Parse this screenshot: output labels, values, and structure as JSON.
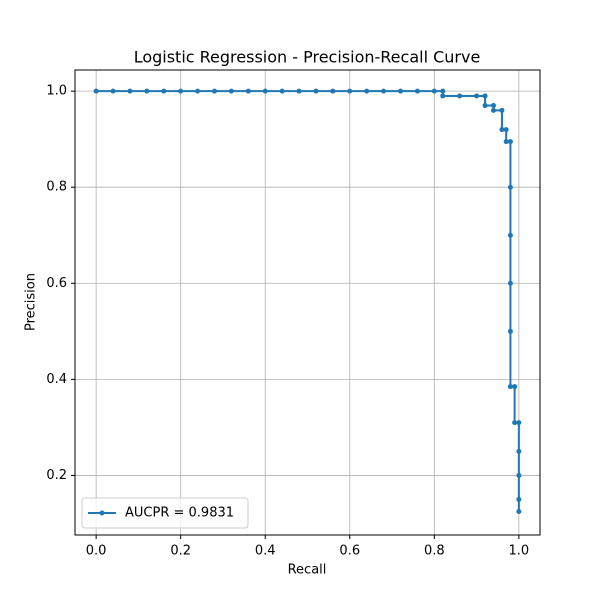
{
  "chart_data": {
    "type": "line",
    "title": "Logistic Regression - Precision-Recall Curve",
    "x_label": "Recall",
    "y_label": "Precision",
    "x": [
      0,
      0.04,
      0.08,
      0.12,
      0.16,
      0.2,
      0.24,
      0.28,
      0.32,
      0.36,
      0.4,
      0.44,
      0.48,
      0.52,
      0.56,
      0.6,
      0.64,
      0.68,
      0.72,
      0.76,
      0.8,
      0.82,
      0.82,
      0.86,
      0.9,
      0.92,
      0.92,
      0.94,
      0.94,
      0.96,
      0.96,
      0.97,
      0.97,
      0.98,
      0.98,
      0.98,
      0.98,
      0.98,
      0.98,
      0.99,
      0.99,
      1.0,
      1.0,
      1.0,
      1.0,
      1.0
    ],
    "series": [
      {
        "name": "AUCPR = 0.9831",
        "color": "#1f77b4",
        "values": [
          1,
          1,
          1,
          1,
          1,
          1,
          1,
          1,
          1,
          1,
          1,
          1,
          1,
          1,
          1,
          1,
          1,
          1,
          1,
          1,
          1,
          1,
          0.99,
          0.99,
          0.99,
          0.99,
          0.97,
          0.97,
          0.96,
          0.96,
          0.92,
          0.92,
          0.895,
          0.895,
          0.8,
          0.7,
          0.6,
          0.5,
          0.385,
          0.385,
          0.31,
          0.31,
          0.25,
          0.2,
          0.15,
          0.125
        ]
      }
    ],
    "xlim": [
      -0.05,
      1.05
    ],
    "ylim": [
      0.076,
      1.044
    ],
    "xticks": [
      {
        "value": 0,
        "label": "0.0"
      },
      {
        "value": 0.2,
        "label": "0.2"
      },
      {
        "value": 0.4,
        "label": "0.4"
      },
      {
        "value": 0.6,
        "label": "0.6"
      },
      {
        "value": 0.8,
        "label": "0.8"
      },
      {
        "value": 1,
        "label": "1.0"
      }
    ],
    "yticks": [
      {
        "value": 0.2,
        "label": "0.2"
      },
      {
        "value": 0.4,
        "label": "0.4"
      },
      {
        "value": 0.6,
        "label": "0.6"
      },
      {
        "value": 0.8,
        "label": "0.8"
      },
      {
        "value": 1,
        "label": "1.0"
      }
    ],
    "grid": true,
    "legend": "lower left"
  }
}
